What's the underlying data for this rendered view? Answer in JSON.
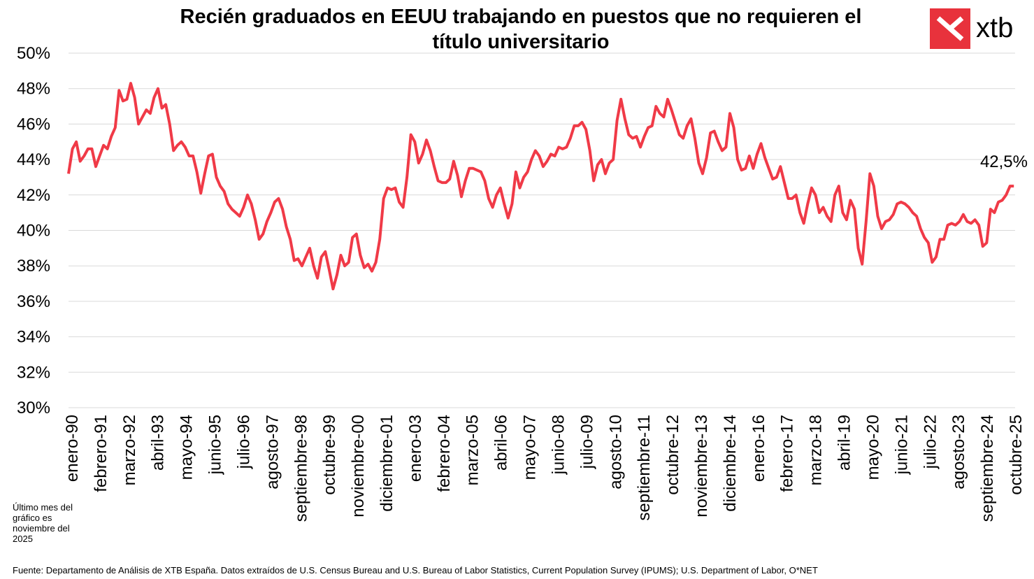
{
  "header": {
    "title_line1": "Recién graduados  en EEUU trabajando en puestos que no requieren el",
    "title_line2": "título universitario"
  },
  "logo": {
    "text": "xtb",
    "icon": "xtb-logo-icon",
    "color": "#e8323c"
  },
  "note": "Último mes del gráfico es noviembre del 2025",
  "source": "Fuente: Departamento de Análisis de XTB España. Datos extraídos de  U.S. Census Bureau and U.S. Bureau of Labor Statistics, Current Population Survey (IPUMS); U.S. Department of Labor, O*NET",
  "chart_data": {
    "type": "line",
    "title": "Recién graduados  en EEUU trabajando en puestos que no requieren el título universitario",
    "xlabel": "",
    "ylabel": "",
    "ylim": [
      30,
      50
    ],
    "y_ticks": [
      "30%",
      "32%",
      "34%",
      "36%",
      "38%",
      "40%",
      "42%",
      "44%",
      "46%",
      "48%",
      "50%"
    ],
    "grid": true,
    "line_color": "#f03a47",
    "x_start": "enero-90",
    "x_end": "noviembre-25",
    "x_tick_labels": [
      "enero-90",
      "febrero-91",
      "marzo-92",
      "abril-93",
      "mayo-94",
      "junio-95",
      "julio-96",
      "agosto-97",
      "septiembre-98",
      "octubre-99",
      "noviembre-00",
      "diciembre-01",
      "enero-03",
      "febrero-04",
      "marzo-05",
      "abril-06",
      "mayo-07",
      "junio-08",
      "julio-09",
      "agosto-10",
      "septiembre-11",
      "octubre-12",
      "noviembre-13",
      "diciembre-14",
      "enero-16",
      "febrero-17",
      "marzo-18",
      "abril-19",
      "mayo-20",
      "junio-21",
      "julio-22",
      "agosto-23",
      "septiembre-24",
      "octubre-25"
    ],
    "last_value_label": "42,5%",
    "series": [
      {
        "values": [
          [
            1990.0,
            43.2
          ],
          [
            1990.25,
            44.6
          ],
          [
            1990.5,
            45.0
          ],
          [
            1990.75,
            43.9
          ],
          [
            1991.0,
            44.2
          ],
          [
            1991.25,
            44.6
          ],
          [
            1991.5,
            44.6
          ],
          [
            1991.75,
            43.6
          ],
          [
            1992.0,
            44.2
          ],
          [
            1992.25,
            44.8
          ],
          [
            1992.5,
            44.6
          ],
          [
            1992.75,
            45.3
          ],
          [
            1993.0,
            45.8
          ],
          [
            1993.25,
            47.9
          ],
          [
            1993.5,
            47.3
          ],
          [
            1993.75,
            47.4
          ],
          [
            1994.0,
            48.3
          ],
          [
            1994.25,
            47.5
          ],
          [
            1994.5,
            46.0
          ],
          [
            1994.75,
            46.4
          ],
          [
            1995.0,
            46.8
          ],
          [
            1995.25,
            46.6
          ],
          [
            1995.5,
            47.5
          ],
          [
            1995.75,
            48.0
          ],
          [
            1996.0,
            46.9
          ],
          [
            1996.25,
            47.1
          ],
          [
            1996.5,
            46.0
          ],
          [
            1996.75,
            44.5
          ],
          [
            1997.0,
            44.8
          ],
          [
            1997.25,
            45.0
          ],
          [
            1997.5,
            44.7
          ],
          [
            1997.75,
            44.2
          ],
          [
            1998.0,
            44.2
          ],
          [
            1998.25,
            43.3
          ],
          [
            1998.5,
            42.1
          ],
          [
            1998.75,
            43.2
          ],
          [
            1999.0,
            44.2
          ],
          [
            1999.25,
            44.3
          ],
          [
            1999.5,
            43.0
          ],
          [
            1999.75,
            42.5
          ],
          [
            2000.0,
            42.2
          ],
          [
            2000.25,
            41.5
          ],
          [
            2000.5,
            41.2
          ],
          [
            2000.75,
            41.0
          ],
          [
            2001.0,
            40.8
          ],
          [
            2001.25,
            41.3
          ],
          [
            2001.5,
            42.0
          ],
          [
            2001.75,
            41.5
          ],
          [
            2002.0,
            40.6
          ],
          [
            2002.25,
            39.5
          ],
          [
            2002.5,
            39.8
          ],
          [
            2002.75,
            40.5
          ],
          [
            2003.0,
            41.0
          ],
          [
            2003.25,
            41.6
          ],
          [
            2003.5,
            41.8
          ],
          [
            2003.75,
            41.2
          ],
          [
            2004.0,
            40.2
          ],
          [
            2004.25,
            39.5
          ],
          [
            2004.5,
            38.3
          ],
          [
            2004.75,
            38.4
          ],
          [
            2005.0,
            38.0
          ],
          [
            2005.25,
            38.5
          ],
          [
            2005.5,
            39.0
          ],
          [
            2005.75,
            38.0
          ],
          [
            2006.0,
            37.3
          ],
          [
            2006.25,
            38.5
          ],
          [
            2006.5,
            38.8
          ],
          [
            2006.75,
            37.8
          ],
          [
            2007.0,
            36.7
          ],
          [
            2007.25,
            37.5
          ],
          [
            2007.5,
            38.6
          ],
          [
            2007.75,
            38.0
          ],
          [
            2008.0,
            38.2
          ],
          [
            2008.25,
            39.6
          ],
          [
            2008.5,
            39.8
          ],
          [
            2008.75,
            38.6
          ],
          [
            2009.0,
            37.9
          ],
          [
            2009.25,
            38.1
          ],
          [
            2009.5,
            37.7
          ],
          [
            2009.75,
            38.2
          ],
          [
            2010.0,
            39.5
          ],
          [
            2010.25,
            41.8
          ],
          [
            2010.5,
            42.4
          ],
          [
            2010.75,
            42.3
          ],
          [
            2011.0,
            42.4
          ],
          [
            2011.25,
            41.6
          ],
          [
            2011.5,
            41.3
          ],
          [
            2011.75,
            43.0
          ],
          [
            2012.0,
            45.4
          ],
          [
            2012.25,
            45.0
          ],
          [
            2012.5,
            43.8
          ],
          [
            2012.75,
            44.3
          ],
          [
            2013.0,
            45.1
          ],
          [
            2013.25,
            44.5
          ],
          [
            2013.5,
            43.6
          ],
          [
            2013.75,
            42.8
          ],
          [
            2014.0,
            42.7
          ],
          [
            2014.25,
            42.7
          ],
          [
            2014.5,
            42.9
          ],
          [
            2014.75,
            43.9
          ],
          [
            2015.0,
            43.1
          ],
          [
            2015.25,
            41.9
          ],
          [
            2015.5,
            42.8
          ],
          [
            2015.75,
            43.5
          ],
          [
            2016.0,
            43.5
          ],
          [
            2016.25,
            43.4
          ],
          [
            2016.5,
            43.3
          ],
          [
            2016.75,
            42.8
          ],
          [
            2017.0,
            41.8
          ],
          [
            2017.25,
            41.3
          ],
          [
            2017.5,
            42.0
          ],
          [
            2017.75,
            42.4
          ],
          [
            2018.0,
            41.5
          ],
          [
            2018.25,
            40.7
          ],
          [
            2018.5,
            41.5
          ],
          [
            2018.75,
            43.3
          ],
          [
            2019.0,
            42.4
          ],
          [
            2019.25,
            43.0
          ],
          [
            2019.5,
            43.3
          ],
          [
            2019.75,
            44.0
          ],
          [
            2020.0,
            44.5
          ],
          [
            2020.25,
            44.2
          ],
          [
            2020.5,
            43.6
          ],
          [
            2020.75,
            43.9
          ],
          [
            2021.0,
            44.3
          ],
          [
            2021.25,
            44.2
          ],
          [
            2021.5,
            44.7
          ],
          [
            2021.75,
            44.6
          ],
          [
            2022.0,
            44.7
          ],
          [
            2022.25,
            45.2
          ],
          [
            2022.5,
            45.9
          ],
          [
            2022.75,
            45.9
          ],
          [
            2023.0,
            46.1
          ],
          [
            2023.25,
            45.7
          ],
          [
            2023.5,
            44.5
          ],
          [
            2023.75,
            42.8
          ],
          [
            2024.0,
            43.7
          ],
          [
            2024.25,
            44.0
          ],
          [
            2024.5,
            43.2
          ],
          [
            2024.75,
            43.8
          ],
          [
            2025.0,
            44.0
          ],
          [
            2025.25,
            46.2
          ],
          [
            2025.5,
            47.4
          ],
          [
            2025.75,
            46.3
          ],
          [
            2026.0,
            45.4
          ],
          [
            2026.25,
            45.2
          ],
          [
            2026.5,
            45.3
          ],
          [
            2026.75,
            44.7
          ],
          [
            2027.0,
            45.3
          ],
          [
            2027.25,
            45.8
          ],
          [
            2027.5,
            45.9
          ],
          [
            2027.75,
            47.0
          ],
          [
            2028.0,
            46.6
          ],
          [
            2028.25,
            46.4
          ],
          [
            2028.5,
            47.4
          ],
          [
            2028.75,
            46.8
          ],
          [
            2029.0,
            46.1
          ],
          [
            2029.25,
            45.4
          ],
          [
            2029.5,
            45.2
          ],
          [
            2029.75,
            45.9
          ],
          [
            2030.0,
            46.3
          ],
          [
            2030.25,
            45.2
          ],
          [
            2030.5,
            43.8
          ],
          [
            2030.75,
            43.2
          ],
          [
            2031.0,
            44.1
          ],
          [
            2031.25,
            45.5
          ],
          [
            2031.5,
            45.6
          ],
          [
            2031.75,
            45.0
          ],
          [
            2032.0,
            44.5
          ],
          [
            2032.25,
            44.7
          ],
          [
            2032.5,
            46.6
          ],
          [
            2032.75,
            45.8
          ],
          [
            2033.0,
            44.0
          ],
          [
            2033.25,
            43.4
          ],
          [
            2033.5,
            43.5
          ],
          [
            2033.75,
            44.2
          ],
          [
            2034.0,
            43.5
          ],
          [
            2034.25,
            44.3
          ],
          [
            2034.5,
            44.9
          ],
          [
            2034.75,
            44.1
          ],
          [
            2035.0,
            43.5
          ],
          [
            2035.25,
            42.9
          ],
          [
            2035.5,
            43.0
          ],
          [
            2035.75,
            43.6
          ],
          [
            2036.0,
            42.7
          ],
          [
            2036.25,
            41.8
          ],
          [
            2036.5,
            41.8
          ],
          [
            2036.75,
            42.0
          ],
          [
            2037.0,
            41.0
          ],
          [
            2037.25,
            40.4
          ],
          [
            2037.5,
            41.5
          ],
          [
            2037.75,
            42.4
          ],
          [
            2038.0,
            42.0
          ],
          [
            2038.25,
            41.0
          ],
          [
            2038.5,
            41.3
          ],
          [
            2038.75,
            40.8
          ],
          [
            2039.0,
            40.5
          ],
          [
            2039.25,
            42.0
          ],
          [
            2039.5,
            42.5
          ],
          [
            2039.75,
            41.0
          ],
          [
            2040.0,
            40.6
          ],
          [
            2040.25,
            41.7
          ],
          [
            2040.5,
            41.2
          ],
          [
            2040.75,
            39.0
          ],
          [
            2041.0,
            38.1
          ],
          [
            2041.25,
            40.5
          ],
          [
            2041.5,
            43.2
          ],
          [
            2041.75,
            42.5
          ],
          [
            2042.0,
            40.8
          ],
          [
            2042.25,
            40.1
          ],
          [
            2042.5,
            40.5
          ],
          [
            2042.75,
            40.6
          ],
          [
            2043.0,
            40.9
          ],
          [
            2043.25,
            41.5
          ],
          [
            2043.5,
            41.6
          ],
          [
            2043.75,
            41.5
          ],
          [
            2044.0,
            41.3
          ],
          [
            2044.25,
            41.0
          ],
          [
            2044.5,
            40.8
          ],
          [
            2044.75,
            40.1
          ],
          [
            2045.0,
            39.6
          ],
          [
            2045.25,
            39.3
          ],
          [
            2045.5,
            38.2
          ],
          [
            2045.75,
            38.5
          ],
          [
            2046.0,
            39.5
          ],
          [
            2046.25,
            39.5
          ],
          [
            2046.5,
            40.3
          ],
          [
            2046.75,
            40.4
          ],
          [
            2047.0,
            40.3
          ],
          [
            2047.25,
            40.5
          ],
          [
            2047.5,
            40.9
          ],
          [
            2047.75,
            40.5
          ],
          [
            2048.0,
            40.4
          ],
          [
            2048.25,
            40.6
          ],
          [
            2048.5,
            40.3
          ],
          [
            2048.75,
            39.1
          ],
          [
            2049.0,
            39.3
          ],
          [
            2049.25,
            41.2
          ],
          [
            2049.5,
            41.0
          ],
          [
            2049.75,
            41.6
          ],
          [
            2050.0,
            41.7
          ],
          [
            2050.25,
            42.0
          ],
          [
            2050.5,
            42.5
          ],
          [
            2050.75,
            42.5
          ]
        ]
      }
    ]
  }
}
